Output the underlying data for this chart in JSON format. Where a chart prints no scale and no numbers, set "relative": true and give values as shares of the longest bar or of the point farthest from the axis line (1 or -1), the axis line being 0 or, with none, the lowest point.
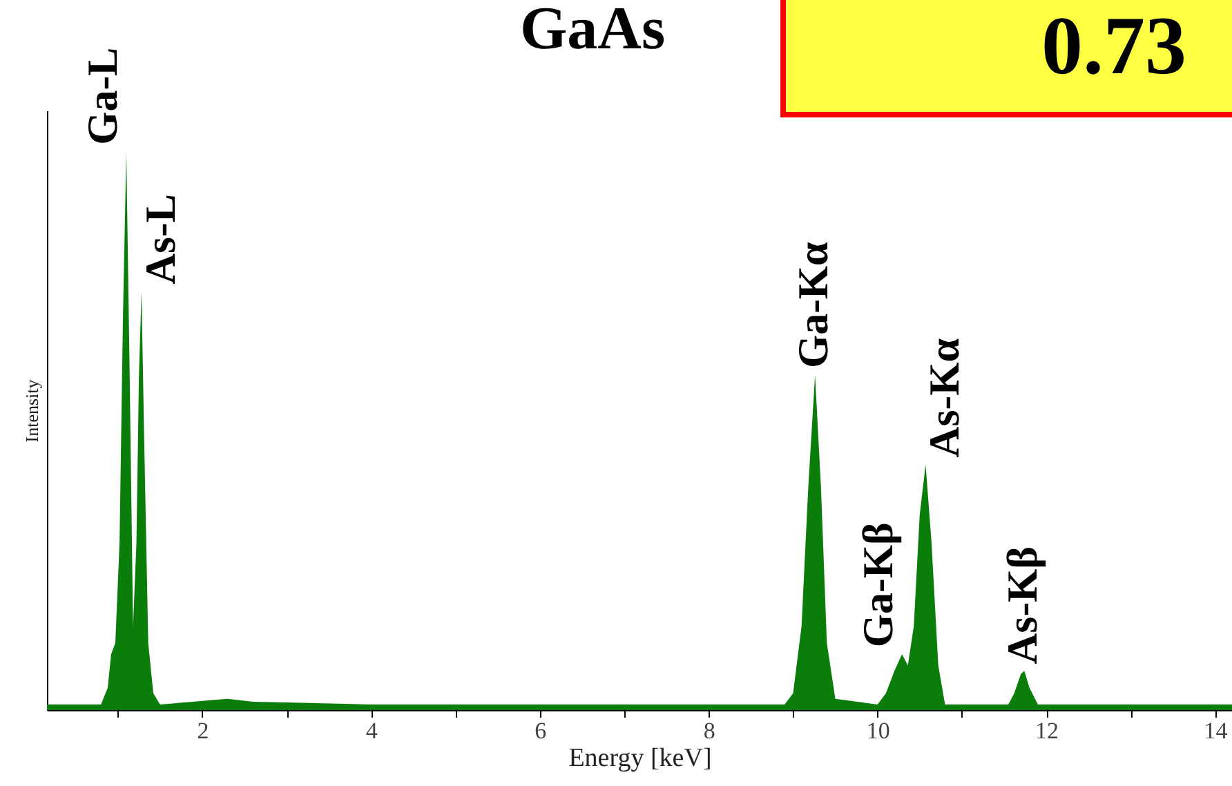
{
  "chart_data": {
    "type": "area",
    "title": "GaAs",
    "xlabel": "Energy  [keV]",
    "ylabel": "Intensity",
    "relative": true,
    "x": [
      0.16,
      0.5,
      0.8,
      0.88,
      0.92,
      0.97,
      1.02,
      1.06,
      1.1,
      1.14,
      1.18,
      1.22,
      1.25,
      1.28,
      1.31,
      1.36,
      1.42,
      1.5,
      2.3,
      2.6,
      4.0,
      8.9,
      9.0,
      9.1,
      9.18,
      9.26,
      9.33,
      9.4,
      9.5,
      10.0,
      10.1,
      10.2,
      10.29,
      10.36,
      10.43,
      10.5,
      10.57,
      10.64,
      10.72,
      10.8,
      11.55,
      11.62,
      11.7,
      11.74,
      11.8,
      11.9,
      14.2
    ],
    "series": [
      {
        "color": "#0a7d0a",
        "values": [
          0.01,
          0.01,
          0.01,
          0.04,
          0.1,
          0.12,
          0.3,
          0.7,
          1.0,
          0.6,
          0.15,
          0.3,
          0.6,
          0.75,
          0.5,
          0.12,
          0.03,
          0.01,
          0.02,
          0.015,
          0.01,
          0.01,
          0.03,
          0.15,
          0.4,
          0.6,
          0.4,
          0.12,
          0.02,
          0.01,
          0.03,
          0.07,
          0.1,
          0.08,
          0.15,
          0.35,
          0.44,
          0.3,
          0.08,
          0.01,
          0.01,
          0.03,
          0.065,
          0.07,
          0.04,
          0.01,
          0.01
        ]
      }
    ],
    "xlim": [
      0.16,
      14.2
    ],
    "xticks": [
      {
        "value": 1,
        "label": null
      },
      2,
      {
        "value": 3,
        "label": null
      },
      4,
      {
        "value": 5,
        "label": null
      },
      6,
      {
        "value": 7,
        "label": null
      },
      8,
      {
        "value": 9,
        "label": null
      },
      10,
      {
        "value": 11,
        "label": null
      },
      12,
      {
        "value": 13,
        "label": null
      },
      14
    ],
    "grid": false,
    "annotations": [
      {
        "text": "Ga-L",
        "x": 1.1,
        "y": 1.0
      },
      {
        "text": "As-L",
        "x": 1.28,
        "y": 0.75
      },
      {
        "text": "Ga-Kα",
        "x": 9.26,
        "y": 0.6
      },
      {
        "text": "Ga-Kβ",
        "x": 10.29,
        "y": 0.1
      },
      {
        "text": "As-Kα",
        "x": 10.57,
        "y": 0.44
      },
      {
        "text": "As-Kβ",
        "x": 11.74,
        "y": 0.07
      },
      "0.73"
    ]
  }
}
